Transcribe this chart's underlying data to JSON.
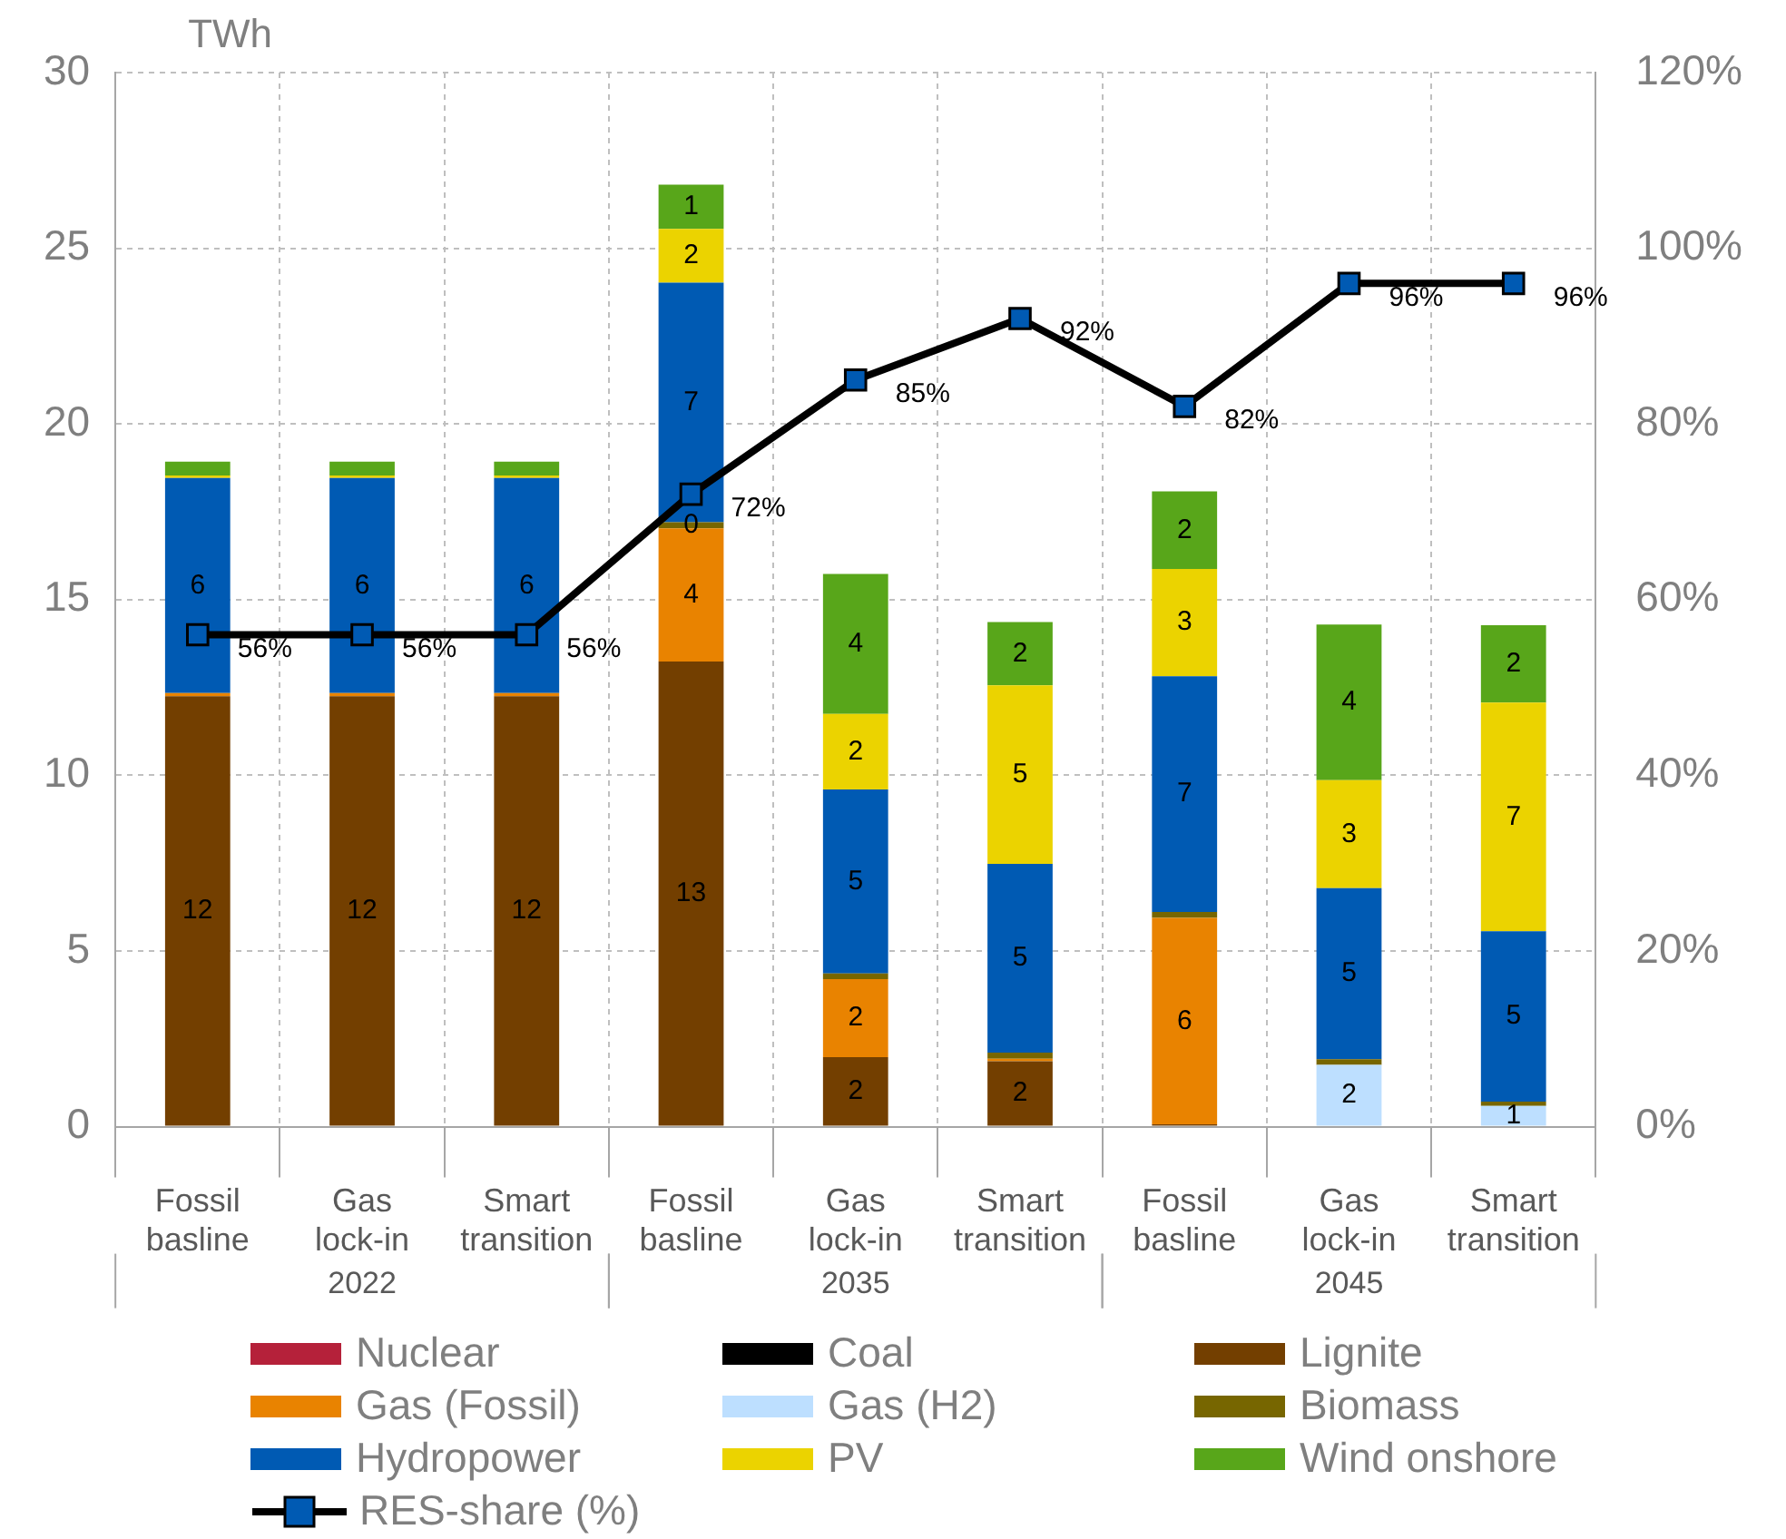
{
  "chart_data": {
    "type": "bar",
    "stacked": true,
    "ylabel": "TWh",
    "categories": [
      "Fossil basline",
      "Gas lock-in",
      "Smart transition",
      "Fossil basline",
      "Gas lock-in",
      "Smart transition",
      "Fossil basline",
      "Gas lock-in",
      "Smart transition"
    ],
    "annotations": [
      "2022",
      "2035",
      "2045"
    ],
    "ylim": [
      0,
      30
    ],
    "yticks": [
      0,
      5,
      10,
      15,
      20,
      25,
      30
    ],
    "y2lim": [
      0,
      120
    ],
    "y2ticks": [
      {
        "value": 0,
        "label": "0%"
      },
      {
        "value": 20,
        "label": "20%"
      },
      {
        "value": 40,
        "label": "40%"
      },
      {
        "value": 60,
        "label": "60%"
      },
      {
        "value": 80,
        "label": "80%"
      },
      {
        "value": 100,
        "label": "100%"
      },
      {
        "value": 120,
        "label": "120%"
      }
    ],
    "grid": true,
    "legend": "bottom",
    "series": [
      {
        "name": "Nuclear",
        "color": "#b5213a",
        "values": [
          0,
          0,
          0,
          0,
          0,
          0,
          0,
          0,
          0
        ]
      },
      {
        "name": "Coal",
        "color": "#000000",
        "values": [
          0,
          0,
          0,
          0,
          0,
          0,
          0,
          0,
          0
        ]
      },
      {
        "name": "Lignite",
        "color": "#733f00",
        "values": [
          12.25,
          12.25,
          12.25,
          13.24,
          1.98,
          1.86,
          0.07,
          0,
          0
        ],
        "value_labels": [
          "12",
          "12",
          "12",
          "13",
          "2",
          "2",
          null,
          null,
          null
        ]
      },
      {
        "name": "Gas (Fossil)",
        "color": "#e98300",
        "values": [
          0.09,
          0.09,
          0.09,
          3.79,
          2.22,
          0.07,
          5.87,
          0,
          0
        ],
        "value_labels": [
          null,
          null,
          null,
          "4",
          "2",
          null,
          "6",
          null,
          null
        ]
      },
      {
        "name": "Gas (H2)",
        "color": "#bddfff",
        "values": [
          0,
          0,
          0,
          0,
          0,
          0,
          0,
          1.76,
          0.59
        ],
        "value_labels": [
          null,
          null,
          null,
          null,
          null,
          null,
          null,
          "2",
          "1"
        ]
      },
      {
        "name": "Biomass",
        "color": "#776600",
        "values": [
          0,
          0,
          0,
          0.17,
          0.16,
          0.18,
          0.17,
          0.16,
          0.12
        ],
        "value_labels": [
          null,
          null,
          null,
          "0",
          null,
          null,
          null,
          null,
          null
        ]
      },
      {
        "name": "Hydropower",
        "color": "#005ab3",
        "values": [
          6.12,
          6.12,
          6.12,
          6.82,
          5.24,
          5.37,
          6.71,
          4.87,
          4.85
        ],
        "value_labels": [
          "6",
          "6",
          "6",
          "7",
          "5",
          "5",
          "7",
          "5",
          "5"
        ]
      },
      {
        "name": "PV",
        "color": "#ebd300",
        "values": [
          0.07,
          0.07,
          0.07,
          1.53,
          2.15,
          5.08,
          3.05,
          3.07,
          6.51
        ],
        "value_labels": [
          null,
          null,
          null,
          "2",
          "2",
          "5",
          "3",
          "3",
          "7"
        ]
      },
      {
        "name": "Wind onshore",
        "color": "#58a61a",
        "values": [
          0.4,
          0.4,
          0.4,
          1.26,
          3.98,
          1.8,
          2.21,
          4.43,
          2.2
        ],
        "value_labels": [
          null,
          null,
          null,
          "1",
          "4",
          "2",
          "2",
          "4",
          "2"
        ]
      },
      {
        "name": "RES-share (%)",
        "type": "line",
        "axis": "y2",
        "color": "#000000",
        "marker": "square",
        "values": [
          56,
          56,
          56,
          72,
          85,
          92,
          82,
          96,
          96
        ],
        "value_labels": [
          "56%",
          "56%",
          "56%",
          "72%",
          "85%",
          "92%",
          "82%",
          "96%",
          "96%"
        ]
      }
    ]
  }
}
